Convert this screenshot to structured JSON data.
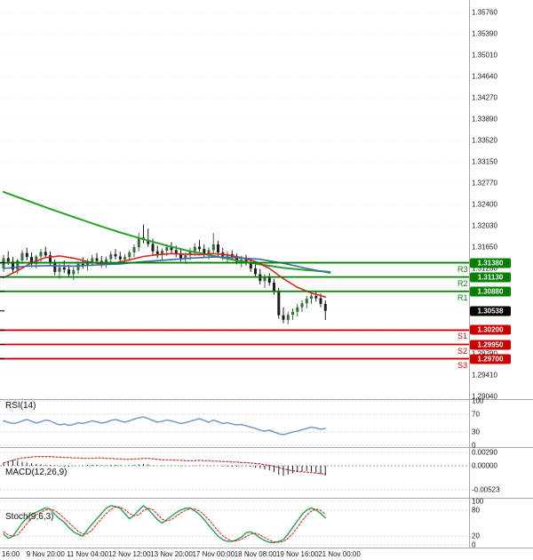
{
  "colors": {
    "background": "#ffffff",
    "resistance": "#008000",
    "support": "#cc0000",
    "price_badge": "#000000",
    "candle_up": "#3d6b3d",
    "candle_down": "#1f1f1f",
    "ma_long": "#2ca02c",
    "ma_mid": "#d62728",
    "ma_fast": "#4169b0",
    "rsi_line": "#7a9cc6",
    "macd_signal": "#cc3333",
    "macd_histogram": "#222222",
    "stoch_k": "#2e9e4e",
    "stoch_d": "#cc3333",
    "grid": "#ececec",
    "panel_border": "#a8a8a8",
    "axis_text": "#1a1a1a"
  },
  "price_axis": {
    "ticks": [
      "1.35760",
      "1.35390",
      "1.35010",
      "1.34640",
      "1.34270",
      "1.33890",
      "1.33520",
      "1.33150",
      "1.32770",
      "1.32400",
      "1.32030",
      "1.31650",
      "1.31280",
      "1.30910",
      "1.30530",
      "1.30160",
      "1.29790",
      "1.29410",
      "1.29040"
    ]
  },
  "time_axis": {
    "labels": [
      {
        "text": "16:00",
        "idx": 0
      },
      {
        "text": "9 Nov 20:00",
        "idx": 9
      },
      {
        "text": "11 Nov 04:00",
        "idx": 18
      },
      {
        "text": "12 Nov 12:00",
        "idx": 27
      },
      {
        "text": "13 Nov 20:00",
        "idx": 36
      },
      {
        "text": "17 Nov 00:00",
        "idx": 45
      },
      {
        "text": "18 Nov 08:00",
        "idx": 54
      },
      {
        "text": "19 Nov 16:00",
        "idx": 63
      },
      {
        "text": "21 Nov 00:00",
        "idx": 72
      }
    ]
  },
  "levels": {
    "resistance": [
      {
        "name": "R3",
        "price": 1.3138,
        "label": "1.31380"
      },
      {
        "name": "R2",
        "price": 1.3113,
        "label": "1.31130"
      },
      {
        "name": "R1",
        "price": 1.3088,
        "label": "1.30880"
      }
    ],
    "support": [
      {
        "name": "S1",
        "price": 1.302,
        "label": "1.30200"
      },
      {
        "name": "S2",
        "price": 1.2995,
        "label": "1.29950"
      },
      {
        "name": "S3",
        "price": 1.297,
        "label": "1.29700"
      }
    ],
    "current": {
      "price": 1.30538,
      "label": "1.30538"
    }
  },
  "chart_data": {
    "type": "candlestick",
    "candles": [
      [
        1.3128,
        1.3152,
        1.3122,
        1.3146
      ],
      [
        1.3146,
        1.3158,
        1.3134,
        1.314
      ],
      [
        1.314,
        1.3148,
        1.312,
        1.3126
      ],
      [
        1.3126,
        1.3145,
        1.3118,
        1.3142
      ],
      [
        1.3142,
        1.316,
        1.3136,
        1.3155
      ],
      [
        1.3155,
        1.3164,
        1.3142,
        1.3148
      ],
      [
        1.3148,
        1.3156,
        1.313,
        1.3136
      ],
      [
        1.3136,
        1.3152,
        1.3128,
        1.3149
      ],
      [
        1.3149,
        1.3162,
        1.314,
        1.3157
      ],
      [
        1.3157,
        1.3166,
        1.3146,
        1.3151
      ],
      [
        1.3151,
        1.3158,
        1.3132,
        1.3138
      ],
      [
        1.3138,
        1.3144,
        1.3116,
        1.3122
      ],
      [
        1.3122,
        1.3136,
        1.311,
        1.313
      ],
      [
        1.313,
        1.3142,
        1.312,
        1.3126
      ],
      [
        1.3126,
        1.3134,
        1.3112,
        1.3118
      ],
      [
        1.3118,
        1.313,
        1.3108,
        1.3125
      ],
      [
        1.3125,
        1.314,
        1.3118,
        1.3136
      ],
      [
        1.3136,
        1.3148,
        1.3128,
        1.3133
      ],
      [
        1.3133,
        1.3145,
        1.3124,
        1.314
      ],
      [
        1.314,
        1.3152,
        1.3132,
        1.3146
      ],
      [
        1.3146,
        1.3155,
        1.3136,
        1.3141
      ],
      [
        1.3141,
        1.315,
        1.313,
        1.3137
      ],
      [
        1.3137,
        1.3149,
        1.3129,
        1.3144
      ],
      [
        1.3144,
        1.3158,
        1.3138,
        1.3153
      ],
      [
        1.3153,
        1.3162,
        1.3144,
        1.3149
      ],
      [
        1.3149,
        1.3157,
        1.3139,
        1.3144
      ],
      [
        1.3144,
        1.3153,
        1.3135,
        1.3148
      ],
      [
        1.3148,
        1.316,
        1.3141,
        1.3156
      ],
      [
        1.3156,
        1.317,
        1.3148,
        1.3165
      ],
      [
        1.3165,
        1.319,
        1.3158,
        1.3182
      ],
      [
        1.3182,
        1.3205,
        1.3172,
        1.3178
      ],
      [
        1.3178,
        1.3198,
        1.3166,
        1.3171
      ],
      [
        1.3171,
        1.318,
        1.3152,
        1.3158
      ],
      [
        1.3158,
        1.3168,
        1.3146,
        1.3152
      ],
      [
        1.3152,
        1.3163,
        1.3142,
        1.3159
      ],
      [
        1.3159,
        1.317,
        1.315,
        1.3165
      ],
      [
        1.3165,
        1.3174,
        1.3155,
        1.316
      ],
      [
        1.316,
        1.3168,
        1.3148,
        1.3153
      ],
      [
        1.3153,
        1.3161,
        1.314,
        1.3146
      ],
      [
        1.3146,
        1.3156,
        1.3136,
        1.3151
      ],
      [
        1.3151,
        1.3164,
        1.3143,
        1.3158
      ],
      [
        1.3158,
        1.3172,
        1.315,
        1.3166
      ],
      [
        1.3166,
        1.3178,
        1.3157,
        1.3162
      ],
      [
        1.3162,
        1.317,
        1.3148,
        1.3154
      ],
      [
        1.3154,
        1.3165,
        1.3144,
        1.316
      ],
      [
        1.316,
        1.319,
        1.3153,
        1.317
      ],
      [
        1.317,
        1.3176,
        1.315,
        1.3156
      ],
      [
        1.3156,
        1.3164,
        1.3143,
        1.3149
      ],
      [
        1.3149,
        1.3158,
        1.3139,
        1.3153
      ],
      [
        1.3153,
        1.316,
        1.3142,
        1.3147
      ],
      [
        1.3147,
        1.3154,
        1.3135,
        1.314
      ],
      [
        1.314,
        1.315,
        1.313,
        1.3144
      ],
      [
        1.3144,
        1.3152,
        1.3133,
        1.3138
      ],
      [
        1.3138,
        1.3145,
        1.3122,
        1.3128
      ],
      [
        1.3128,
        1.3136,
        1.3112,
        1.3118
      ],
      [
        1.3118,
        1.3127,
        1.31,
        1.3106
      ],
      [
        1.3106,
        1.3118,
        1.3094,
        1.3112
      ],
      [
        1.3112,
        1.312,
        1.3098,
        1.3103
      ],
      [
        1.3103,
        1.311,
        1.3082,
        1.3088
      ],
      [
        1.3088,
        1.3094,
        1.304,
        1.3046
      ],
      [
        1.3046,
        1.306,
        1.3032,
        1.3038
      ],
      [
        1.3038,
        1.3052,
        1.303,
        1.3047
      ],
      [
        1.3047,
        1.3058,
        1.3038,
        1.3052
      ],
      [
        1.3052,
        1.3066,
        1.3044,
        1.306
      ],
      [
        1.306,
        1.3072,
        1.3052,
        1.3067
      ],
      [
        1.3067,
        1.308,
        1.3058,
        1.3075
      ],
      [
        1.3075,
        1.3086,
        1.3066,
        1.308
      ],
      [
        1.308,
        1.3088,
        1.307,
        1.3076
      ],
      [
        1.3076,
        1.3084,
        1.306,
        1.3066
      ],
      [
        1.3066,
        1.3072,
        1.3038,
        1.3054
      ]
    ],
    "overlays": [
      {
        "name": "long-ma",
        "points": [
          [
            0,
            1.3262
          ],
          [
            5,
            1.3247
          ],
          [
            10,
            1.3232
          ],
          [
            15,
            1.3218
          ],
          [
            20,
            1.3204
          ],
          [
            25,
            1.3191
          ],
          [
            30,
            1.3179
          ],
          [
            35,
            1.3168
          ],
          [
            40,
            1.3158
          ],
          [
            45,
            1.315
          ],
          [
            50,
            1.3142
          ],
          [
            55,
            1.3135
          ],
          [
            60,
            1.3129
          ],
          [
            65,
            1.3125
          ],
          [
            70,
            1.3122
          ]
        ]
      },
      {
        "name": "mid-ma",
        "points": [
          [
            0,
            1.3112
          ],
          [
            3,
            1.3124
          ],
          [
            6,
            1.3138
          ],
          [
            9,
            1.3147
          ],
          [
            12,
            1.315
          ],
          [
            15,
            1.3146
          ],
          [
            18,
            1.314
          ],
          [
            21,
            1.3136
          ],
          [
            24,
            1.3138
          ],
          [
            27,
            1.3143
          ],
          [
            30,
            1.3149
          ],
          [
            33,
            1.3152
          ],
          [
            36,
            1.3154
          ],
          [
            39,
            1.3153
          ],
          [
            42,
            1.3152
          ],
          [
            45,
            1.3154
          ],
          [
            48,
            1.3152
          ],
          [
            51,
            1.3147
          ],
          [
            54,
            1.314
          ],
          [
            57,
            1.3128
          ],
          [
            60,
            1.311
          ],
          [
            63,
            1.3095
          ],
          [
            66,
            1.3085
          ],
          [
            69,
            1.3078
          ]
        ]
      },
      {
        "name": "fast-ma",
        "points": [
          [
            0,
            1.3128
          ],
          [
            5,
            1.3132
          ],
          [
            10,
            1.3133
          ],
          [
            15,
            1.3132
          ],
          [
            20,
            1.3134
          ],
          [
            25,
            1.3136
          ],
          [
            30,
            1.314
          ],
          [
            35,
            1.3143
          ],
          [
            40,
            1.3146
          ],
          [
            45,
            1.3148
          ],
          [
            50,
            1.3147
          ],
          [
            55,
            1.3144
          ],
          [
            60,
            1.3137
          ],
          [
            65,
            1.3128
          ],
          [
            70,
            1.312
          ]
        ]
      }
    ],
    "indicators": [
      {
        "name": "RSI(14)",
        "ticks": [
          {
            "label": "100",
            "value": 100
          },
          {
            "label": "70",
            "value": 70
          },
          {
            "label": "30",
            "value": 30
          },
          {
            "label": "0",
            "value": 0
          }
        ],
        "series": [
          {
            "name": "rsi",
            "values": [
              55,
              52,
              49,
              51,
              55,
              58,
              54,
              50,
              53,
              57,
              55,
              50,
              46,
              48,
              45,
              47,
              51,
              49,
              52,
              55,
              53,
              50,
              52,
              56,
              58,
              55,
              52,
              55,
              59,
              62,
              64,
              60,
              56,
              52,
              54,
              57,
              55,
              52,
              49,
              51,
              54,
              57,
              60,
              56,
              52,
              57,
              53,
              49,
              51,
              48,
              46,
              47,
              44,
              41,
              38,
              34,
              32,
              34,
              30,
              26,
              24,
              27,
              30,
              32,
              35,
              38,
              41,
              39,
              36,
              38
            ]
          }
        ]
      },
      {
        "name": "MACD(12,26,9)",
        "ticks": [
          {
            "label": "0.00290",
            "value": 0.0029
          },
          {
            "label": "0.00000",
            "value": 0
          },
          {
            "label": "-0.00523",
            "value": -0.00523
          }
        ],
        "series": [
          {
            "name": "signal",
            "values": [
              0.0006,
              0.0009,
              0.0012,
              0.0015,
              0.0017,
              0.0018,
              0.0019,
              0.002,
              0.002,
              0.002,
              0.002,
              0.0019,
              0.0019,
              0.0018,
              0.0018,
              0.0017,
              0.0017,
              0.0016,
              0.0016,
              0.0016,
              0.0017,
              0.0017,
              0.0016,
              0.0016,
              0.0015,
              0.0015,
              0.0014,
              0.0014,
              0.0015,
              0.0015,
              0.0016,
              0.0016,
              0.0015,
              0.0014,
              0.0013,
              0.0013,
              0.0013,
              0.0012,
              0.0012,
              0.0011,
              0.0011,
              0.0011,
              0.0012,
              0.0011,
              0.0011,
              0.001,
              0.001,
              0.0009,
              0.0009,
              0.0008,
              0.0008,
              0.0007,
              0.0007,
              0.0006,
              0.0005,
              0.0004,
              0.0002,
              0.0001,
              -0.0001,
              -0.0004,
              -0.0007,
              -0.0009,
              -0.0011,
              -0.0012,
              -0.0013,
              -0.0014,
              -0.0015,
              -0.0016,
              -0.0017,
              -0.0018
            ]
          },
          {
            "name": "histogram",
            "values": [
              0.0007,
              0.001,
              0.0012,
              0.0011,
              0.0009,
              0.0007,
              0.0005,
              0.0004,
              0.0003,
              0.0002,
              0.0002,
              0.0001,
              -0.0001,
              -0.0002,
              -0.0002,
              -0.0001,
              0.0,
              0.0001,
              0.0002,
              0.0002,
              0.0002,
              0.0001,
              0.0001,
              0.0002,
              0.0002,
              0.0001,
              0.0,
              0.0001,
              0.0002,
              0.0003,
              0.0004,
              0.0003,
              0.0001,
              0.0,
              -0.0001,
              0.0,
              0.0001,
              0.0,
              -0.0001,
              -0.0001,
              0.0,
              0.0001,
              0.0001,
              0.0,
              -0.0001,
              0.0001,
              0.0,
              -0.0001,
              -0.0002,
              -0.0002,
              -0.0002,
              -0.0001,
              -0.0001,
              -0.0002,
              -0.0004,
              -0.0005,
              -0.0008,
              -0.001,
              -0.0014,
              -0.002,
              -0.0022,
              -0.0019,
              -0.0016,
              -0.0014,
              -0.0012,
              -0.0011,
              -0.0013,
              -0.0015,
              -0.0018,
              -0.0021
            ]
          }
        ]
      },
      {
        "name": "Stoch(9,6,3)",
        "ticks": [
          {
            "label": "100",
            "value": 100
          },
          {
            "label": "80",
            "value": 80
          },
          {
            "label": "20",
            "value": 20
          },
          {
            "label": "0",
            "value": 0
          }
        ],
        "series": [
          {
            "name": "k",
            "values": [
              25,
              15,
              20,
              35,
              50,
              62,
              70,
              75,
              80,
              85,
              82,
              70,
              60,
              52,
              40,
              30,
              24,
              20,
              35,
              48,
              60,
              72,
              84,
              90,
              88,
              84,
              72,
              60,
              68,
              80,
              90,
              82,
              70,
              58,
              50,
              58,
              66,
              74,
              80,
              84,
              85,
              78,
              70,
              58,
              45,
              32,
              20,
              12,
              8,
              8,
              12,
              18,
              28,
              30,
              24,
              16,
              10,
              6,
              5,
              8,
              12,
              25,
              40,
              55,
              70,
              80,
              85,
              80,
              72,
              62
            ]
          },
          {
            "name": "d",
            "values": [
              30,
              23,
              20,
              23,
              35,
              49,
              61,
              69,
              75,
              80,
              82,
              79,
              71,
              61,
              51,
              41,
              31,
              25,
              26,
              34,
              48,
              60,
              72,
              82,
              87,
              87,
              81,
              72,
              67,
              69,
              79,
              84,
              81,
              70,
              59,
              55,
              58,
              66,
              73,
              79,
              83,
              82,
              78,
              69,
              58,
              45,
              32,
              21,
              13,
              9,
              9,
              13,
              19,
              25,
              27,
              23,
              17,
              11,
              7,
              6,
              8,
              15,
              26,
              40,
              55,
              68,
              78,
              82,
              79,
              71
            ]
          }
        ]
      }
    ]
  }
}
